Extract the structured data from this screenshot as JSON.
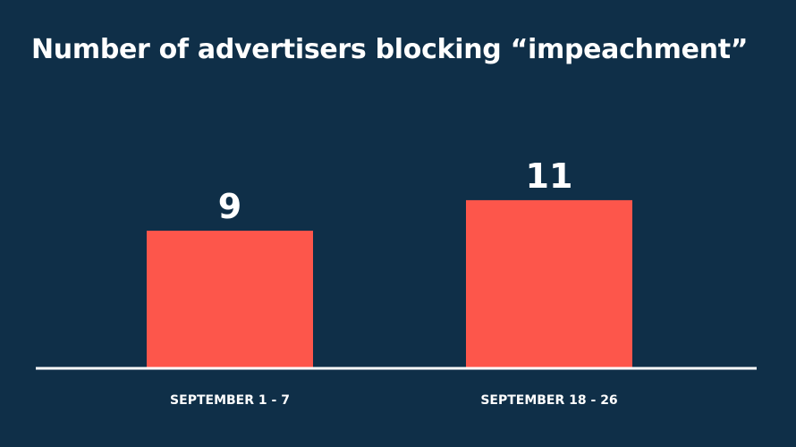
{
  "chart_data": {
    "type": "bar",
    "title": "Number of advertisers blocking “impeachment”",
    "categories": [
      "SEPTEMBER 1 - 7",
      "SEPTEMBER 18 - 26"
    ],
    "values": [
      9,
      11
    ],
    "data_labels": [
      "9",
      "11"
    ],
    "xlabel": "",
    "ylabel": "",
    "grid": false,
    "legend": "none",
    "colors": {
      "background": "#0f2f48",
      "bar": "#fd564b",
      "text": "#ffffff",
      "axis": "#ffffff"
    }
  }
}
